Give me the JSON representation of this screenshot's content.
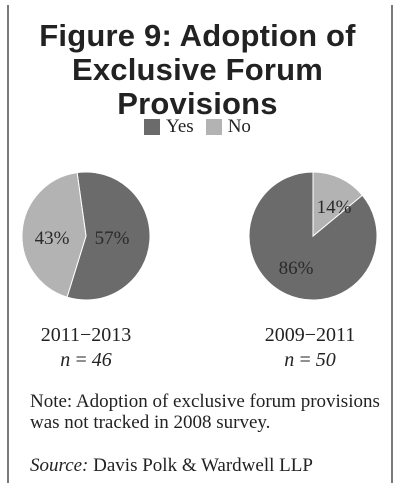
{
  "chart_data": {
    "type": "pie",
    "title": [
      "Figure 9: Adoption of",
      "Exclusive Forum Provisions"
    ],
    "legend": [
      {
        "label": "Yes",
        "color": "#6b6b6b"
      },
      {
        "label": "No",
        "color": "#b3b3b3"
      }
    ],
    "legend_position": "top-center",
    "pies": [
      {
        "period": "2011−2013",
        "n_label": "n = 46",
        "slices": [
          {
            "label": "Yes",
            "value": 57,
            "text": "57%"
          },
          {
            "label": "No",
            "value": 43,
            "text": "43%"
          }
        ]
      },
      {
        "period": "2009−2011",
        "n_label": "n = 50",
        "slices": [
          {
            "label": "Yes",
            "value": 86,
            "text": "86%"
          },
          {
            "label": "No",
            "value": 14,
            "text": "14%"
          }
        ]
      }
    ],
    "note": "Note: Adoption of exclusive forum provisions was not tracked in 2008 survey.",
    "source_label": "Source:",
    "source_text": " Davis Polk & Wardwell LLP"
  }
}
